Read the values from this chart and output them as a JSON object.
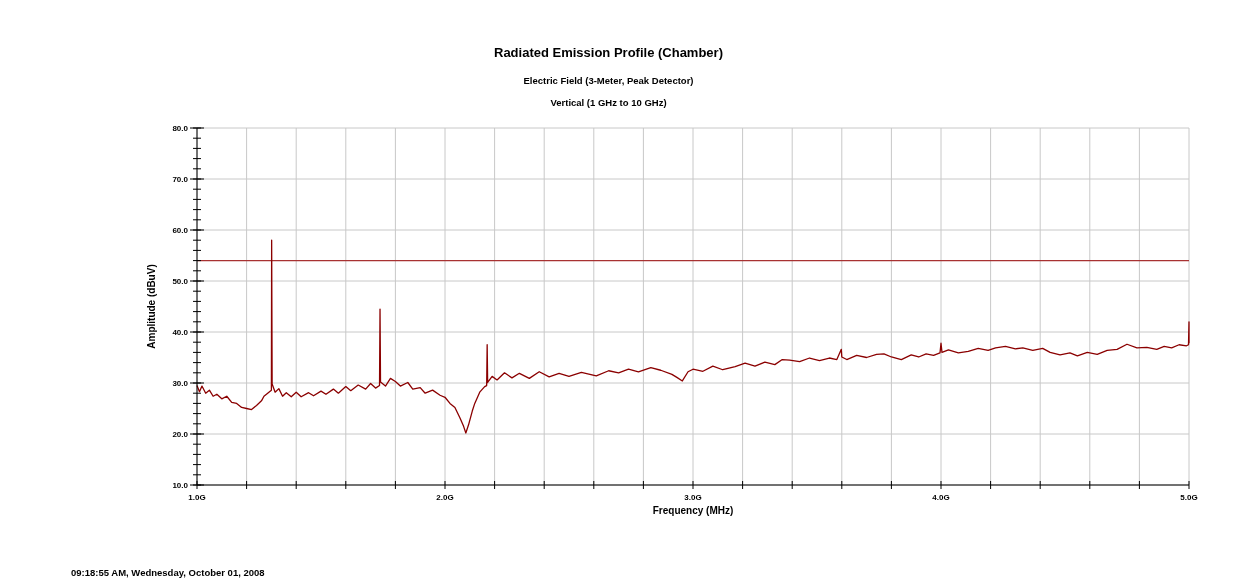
{
  "chart_data": {
    "type": "line",
    "title": "Radiated Emission Profile (Chamber)",
    "subtitle": "Electric Field (3-Meter, Peak Detector)\nVertical (1 GHz to 10 GHz)",
    "xlabel": "Frequency (MHz)",
    "ylabel": "Amplitude (dBuV)",
    "annotations": [
      "09:18:55 AM, Wednesday, October 01, 2008"
    ],
    "series": [
      {
        "color": "#8b0000",
        "x": [
          1.0,
          1.01,
          1.02,
          1.035,
          1.05,
          1.065,
          1.08,
          1.1,
          1.12,
          1.14,
          1.16,
          1.18,
          1.2,
          1.22,
          1.24,
          1.26,
          1.27,
          1.285,
          1.3,
          1.301,
          1.303,
          1.315,
          1.33,
          1.345,
          1.36,
          1.38,
          1.4,
          1.42,
          1.45,
          1.47,
          1.5,
          1.52,
          1.55,
          1.57,
          1.6,
          1.62,
          1.65,
          1.68,
          1.7,
          1.72,
          1.736,
          1.738,
          1.74,
          1.76,
          1.78,
          1.8,
          1.82,
          1.85,
          1.87,
          1.9,
          1.92,
          1.95,
          1.98,
          2.0,
          2.02,
          2.04,
          2.06,
          2.075,
          2.084,
          2.095,
          2.11,
          2.12,
          2.14,
          2.16,
          2.168,
          2.17,
          2.172,
          2.19,
          2.21,
          2.24,
          2.27,
          2.3,
          2.34,
          2.38,
          2.42,
          2.46,
          2.5,
          2.55,
          2.61,
          2.66,
          2.7,
          2.74,
          2.78,
          2.83,
          2.87,
          2.915,
          2.935,
          2.957,
          2.98,
          3.0,
          3.04,
          3.08,
          3.12,
          3.17,
          3.21,
          3.25,
          3.29,
          3.33,
          3.36,
          3.39,
          3.43,
          3.47,
          3.51,
          3.55,
          3.58,
          3.598,
          3.6,
          3.62,
          3.66,
          3.7,
          3.74,
          3.77,
          3.8,
          3.84,
          3.88,
          3.91,
          3.94,
          3.97,
          3.996,
          4.0,
          4.004,
          4.03,
          4.07,
          4.11,
          4.15,
          4.19,
          4.22,
          4.26,
          4.3,
          4.33,
          4.37,
          4.41,
          4.44,
          4.48,
          4.52,
          4.55,
          4.59,
          4.63,
          4.67,
          4.71,
          4.75,
          4.79,
          4.83,
          4.87,
          4.9,
          4.93,
          4.96,
          4.99,
          4.998,
          5.0,
          5.0
        ],
        "values": [
          29.5,
          28.3,
          29.4,
          28,
          28.6,
          27.4,
          27.8,
          26.9,
          27.4,
          26.2,
          26,
          25.2,
          25,
          24.8,
          25.6,
          26.5,
          27.4,
          28,
          28.6,
          58,
          29.8,
          28.2,
          28.9,
          27.4,
          28.1,
          27.3,
          28.2,
          27.3,
          28.1,
          27.5,
          28.4,
          27.8,
          28.8,
          28,
          29.3,
          28.5,
          29.6,
          28.8,
          29.9,
          29,
          29.5,
          44.5,
          30.2,
          29.4,
          30.9,
          30.3,
          29.4,
          30.1,
          28.8,
          29.1,
          28,
          28.6,
          27.6,
          27.2,
          26,
          25.2,
          23.2,
          21.5,
          20.2,
          21.8,
          24.5,
          26,
          28.2,
          29.3,
          29.5,
          37.5,
          30.1,
          31.3,
          30.6,
          32,
          31,
          31.9,
          30.9,
          32.2,
          31.2,
          31.9,
          31.3,
          32.1,
          31.4,
          32.4,
          32,
          32.7,
          32.2,
          33,
          32.5,
          31.7,
          31.1,
          30.4,
          32.2,
          32.7,
          32.3,
          33.3,
          32.6,
          33.2,
          33.9,
          33.3,
          34.1,
          33.6,
          34.6,
          34.5,
          34.2,
          34.9,
          34.4,
          34.9,
          34.6,
          36.6,
          35.1,
          34.6,
          35.4,
          35,
          35.6,
          35.7,
          35.1,
          34.6,
          35.5,
          35.1,
          35.7,
          35.4,
          35.9,
          37.8,
          36,
          36.5,
          35.9,
          36.2,
          36.8,
          36.4,
          36.9,
          37.2,
          36.7,
          36.9,
          36.4,
          36.8,
          36,
          35.5,
          35.9,
          35.3,
          36,
          35.6,
          36.4,
          36.6,
          37.6,
          36.9,
          37,
          36.6,
          37.2,
          36.9,
          37.5,
          37.3,
          37.5,
          42,
          37.8
        ]
      }
    ],
    "xlim": [
      1.0,
      5.0
    ],
    "xticks": [
      {
        "value": 1.0,
        "label": "1.0G"
      },
      {
        "value": 1.2,
        "label": null
      },
      {
        "value": 1.4,
        "label": null
      },
      {
        "value": 1.6,
        "label": null
      },
      {
        "value": 1.8,
        "label": null
      },
      {
        "value": 2.0,
        "label": "2.0G"
      },
      {
        "value": 2.2,
        "label": null
      },
      {
        "value": 2.4,
        "label": null
      },
      {
        "value": 2.6,
        "label": null
      },
      {
        "value": 2.8,
        "label": null
      },
      {
        "value": 3.0,
        "label": "3.0G"
      },
      {
        "value": 3.2,
        "label": null
      },
      {
        "value": 3.4,
        "label": null
      },
      {
        "value": 3.6,
        "label": null
      },
      {
        "value": 3.8,
        "label": null
      },
      {
        "value": 4.0,
        "label": "4.0G"
      },
      {
        "value": 4.2,
        "label": null
      },
      {
        "value": 4.4,
        "label": null
      },
      {
        "value": 4.6,
        "label": null
      },
      {
        "value": 4.8,
        "label": null
      },
      {
        "value": 5.0,
        "label": "5.0G"
      }
    ],
    "ylim": [
      10,
      80
    ],
    "yticks": [
      {
        "value": 10,
        "label": "10.0"
      },
      {
        "value": 20,
        "label": "20.0"
      },
      {
        "value": 30,
        "label": "30.0"
      },
      {
        "value": 40,
        "label": "40.0"
      },
      {
        "value": 50,
        "label": "50.0"
      },
      {
        "value": 60,
        "label": "60.0"
      },
      {
        "value": 70,
        "label": "70.0"
      },
      {
        "value": 80,
        "label": "80.0"
      }
    ],
    "grid": true,
    "line_style": "solid",
    "marker": "none",
    "ref_lines": [
      {
        "axis": "y",
        "value": 54,
        "color": "#a83232",
        "line_style": "solid"
      }
    ]
  }
}
